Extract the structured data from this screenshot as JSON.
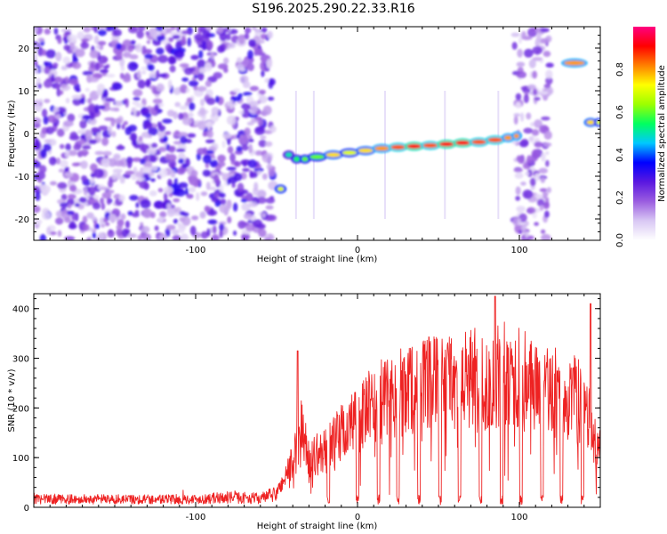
{
  "title": "S196.2025.290.22.33.R16",
  "chart_data": [
    {
      "type": "heatmap",
      "xlabel": "Height of straight line (km)",
      "ylabel": "Frequency (Hz)",
      "xlim": [
        -200,
        150
      ],
      "ylim": [
        -25,
        25
      ],
      "xticks": [
        -100,
        0,
        100
      ],
      "yticks": [
        -20,
        -10,
        0,
        10,
        20
      ],
      "colorbar": {
        "label": "Normalized spectral amplitude",
        "range": [
          0,
          1
        ],
        "ticks": [
          "0.0",
          "0.2",
          "0.4",
          "0.6",
          "0.8"
        ],
        "colors": [
          "#ffffff",
          "#d9c8f4",
          "#9b5de0",
          "#5a18e0",
          "#0000ff",
          "#00c8ff",
          "#00ff60",
          "#9cff00",
          "#ffff00",
          "#ff8000",
          "#ff0000",
          "#ff0080"
        ]
      },
      "noise_regions": [
        {
          "x_from": -200,
          "x_to": -52,
          "level": 0.25
        },
        {
          "x_from": 97,
          "x_to": 119,
          "level": 0.2
        }
      ],
      "signal_track": [
        {
          "x": -50,
          "y": -13,
          "amp": 0.7
        },
        {
          "x": -45,
          "y": -5,
          "amp": 0.5
        },
        {
          "x": -40,
          "y": -6,
          "amp": 0.55
        },
        {
          "x": -35,
          "y": -6,
          "amp": 0.6
        },
        {
          "x": -30,
          "y": -5.5,
          "amp": 0.6
        },
        {
          "x": -20,
          "y": -5,
          "amp": 0.75
        },
        {
          "x": -10,
          "y": -4.5,
          "amp": 0.7
        },
        {
          "x": 0,
          "y": -4,
          "amp": 0.75
        },
        {
          "x": 10,
          "y": -3.5,
          "amp": 0.8
        },
        {
          "x": 20,
          "y": -3.2,
          "amp": 0.85
        },
        {
          "x": 30,
          "y": -3,
          "amp": 0.9
        },
        {
          "x": 40,
          "y": -2.8,
          "amp": 0.85
        },
        {
          "x": 50,
          "y": -2.5,
          "amp": 0.9
        },
        {
          "x": 60,
          "y": -2.2,
          "amp": 0.9
        },
        {
          "x": 70,
          "y": -2,
          "amp": 0.85
        },
        {
          "x": 80,
          "y": -1.5,
          "amp": 0.85
        },
        {
          "x": 90,
          "y": -1,
          "amp": 0.8
        },
        {
          "x": 96,
          "y": -0.6,
          "amp": 0.8
        },
        {
          "x": 127,
          "y": 16.5,
          "amp": 0.8
        },
        {
          "x": 141,
          "y": 2.6,
          "amp": 0.75
        },
        {
          "x": 147,
          "y": 2.6,
          "amp": 0.7
        }
      ]
    },
    {
      "type": "line",
      "xlabel": "Height of straight line (km)",
      "ylabel": "SNR (10 * v/v)",
      "xlim": [
        -200,
        150
      ],
      "ylim": [
        0,
        430
      ],
      "xticks": [
        -100,
        0,
        100
      ],
      "yticks": [
        0,
        100,
        200,
        300,
        400
      ],
      "color": "#ee2222",
      "envelope": [
        {
          "x": -200,
          "y": 18
        },
        {
          "x": -150,
          "y": 18
        },
        {
          "x": -100,
          "y": 18
        },
        {
          "x": -80,
          "y": 22
        },
        {
          "x": -60,
          "y": 20
        },
        {
          "x": -50,
          "y": 30
        },
        {
          "x": -40,
          "y": 100
        },
        {
          "x": -35,
          "y": 170
        },
        {
          "x": -30,
          "y": 110
        },
        {
          "x": -20,
          "y": 120
        },
        {
          "x": -15,
          "y": 140
        },
        {
          "x": -10,
          "y": 160
        },
        {
          "x": 0,
          "y": 190
        },
        {
          "x": 10,
          "y": 220
        },
        {
          "x": 20,
          "y": 240
        },
        {
          "x": 30,
          "y": 260
        },
        {
          "x": 40,
          "y": 260
        },
        {
          "x": 50,
          "y": 270
        },
        {
          "x": 60,
          "y": 280
        },
        {
          "x": 70,
          "y": 280
        },
        {
          "x": 80,
          "y": 270
        },
        {
          "x": 90,
          "y": 290
        },
        {
          "x": 100,
          "y": 280
        },
        {
          "x": 110,
          "y": 270
        },
        {
          "x": 120,
          "y": 250
        },
        {
          "x": 130,
          "y": 240
        },
        {
          "x": 140,
          "y": 230
        },
        {
          "x": 148,
          "y": 120
        }
      ],
      "dropouts": [
        -18,
        0,
        13,
        25,
        38,
        51,
        63,
        76,
        89,
        101,
        114,
        126,
        139
      ],
      "peaks": [
        {
          "x": -37,
          "y": 315
        },
        {
          "x": 85,
          "y": 425
        },
        {
          "x": 144,
          "y": 410
        }
      ]
    }
  ]
}
